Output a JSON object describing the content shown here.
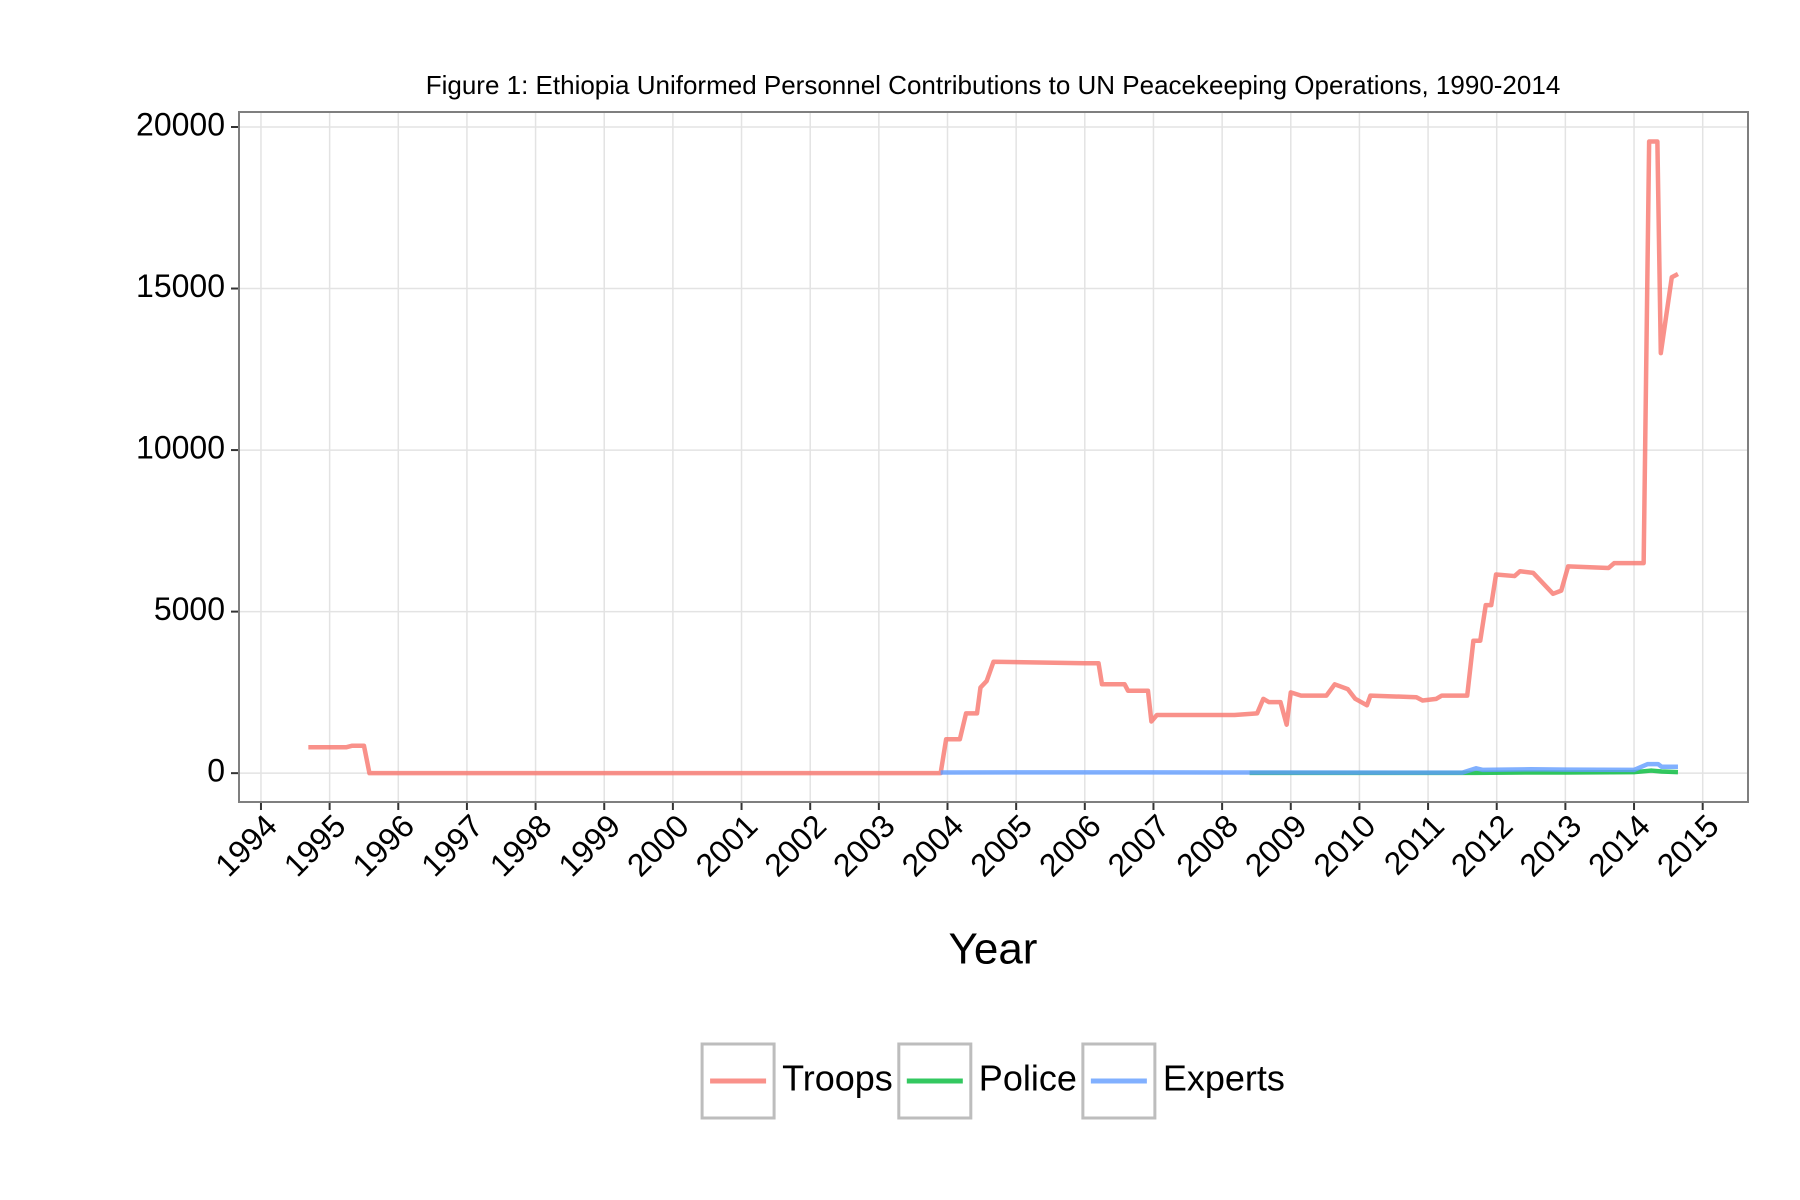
{
  "chart_data": {
    "type": "line",
    "title": "Figure 1: Ethiopia Uniformed Personnel Contributions to UN Peacekeeping Operations, 1990-2014",
    "x_label": "Year",
    "xlim": [
      1993.68,
      2015.66
    ],
    "xticks": [
      1994,
      1995,
      1996,
      1997,
      1998,
      1999,
      2000,
      2001,
      2002,
      2003,
      2004,
      2005,
      2006,
      2007,
      2008,
      2009,
      2010,
      2011,
      2012,
      2013,
      2014,
      2015
    ],
    "ylim": [
      -893,
      20464
    ],
    "yticks": [
      0,
      5000,
      10000,
      15000,
      20000
    ],
    "grid": true,
    "legend_position": "bottom",
    "series": [
      {
        "name": "Troops",
        "color": "#F8766D",
        "x": [
          1994.69,
          1995.24,
          1995.33,
          1995.5,
          1995.58,
          2003.9,
          2003.98,
          2004.18,
          2004.27,
          2004.43,
          2004.48,
          2004.57,
          2004.67,
          2006.0,
          2006.2,
          2006.25,
          2006.58,
          2006.63,
          2006.92,
          2006.97,
          2007.05,
          2008.18,
          2008.51,
          2008.6,
          2008.68,
          2008.85,
          2008.94,
          2009.0,
          2009.15,
          2009.52,
          2009.64,
          2009.83,
          2009.94,
          2010.11,
          2010.16,
          2010.83,
          2010.92,
          2011.12,
          2011.2,
          2011.57,
          2011.66,
          2011.76,
          2011.84,
          2011.92,
          2011.99,
          2012.26,
          2012.34,
          2012.53,
          2012.82,
          2012.94,
          2013.04,
          2013.63,
          2013.71,
          2014.14,
          2014.22,
          2014.34,
          2014.39,
          2014.55,
          2014.64
        ],
        "values": [
          800,
          800,
          850,
          850,
          0,
          0,
          1050,
          1050,
          1850,
          1850,
          2650,
          2850,
          3450,
          3400,
          3400,
          2750,
          2750,
          2550,
          2550,
          1600,
          1800,
          1800,
          1850,
          2300,
          2200,
          2200,
          1500,
          2500,
          2400,
          2400,
          2750,
          2600,
          2300,
          2100,
          2400,
          2350,
          2250,
          2300,
          2400,
          2400,
          4100,
          4100,
          5200,
          5200,
          6150,
          6100,
          6250,
          6200,
          5550,
          5650,
          6400,
          6350,
          6500,
          6500,
          19550,
          19550,
          13000,
          15350,
          15450
        ]
      },
      {
        "name": "Police",
        "color": "#00BA38",
        "x": [
          2008.4,
          2009.5,
          2010.5,
          2011.5,
          2011.67,
          2012.5,
          2013.0,
          2014.0,
          2014.25,
          2014.4,
          2014.64
        ],
        "values": [
          10,
          10,
          10,
          10,
          10,
          20,
          20,
          30,
          80,
          50,
          30
        ]
      },
      {
        "name": "Experts",
        "color": "#619CFF",
        "x": [
          2003.9,
          2006.0,
          2008.0,
          2011.5,
          2011.7,
          2011.8,
          2012.5,
          2013.0,
          2014.0,
          2014.2,
          2014.35,
          2014.4,
          2014.64
        ],
        "values": [
          20,
          25,
          20,
          15,
          150,
          100,
          120,
          110,
          100,
          280,
          280,
          200,
          200
        ]
      }
    ]
  }
}
